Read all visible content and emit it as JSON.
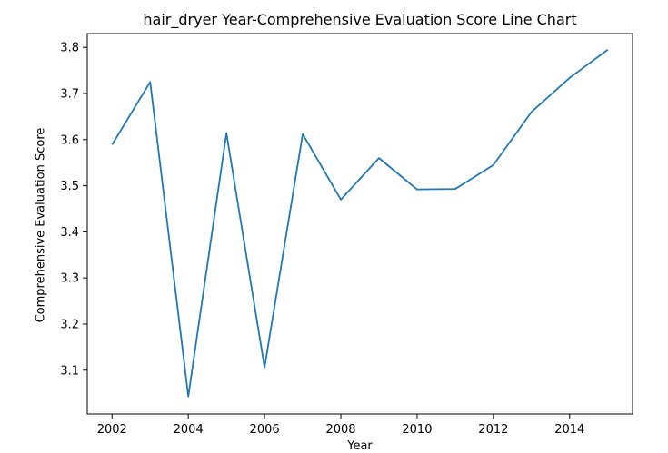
{
  "chart_data": {
    "type": "line",
    "title": "hair_dryer Year-Comprehensive Evaluation Score Line Chart",
    "xlabel": "Year",
    "ylabel": "Comprehensive Evaluation Score",
    "x": [
      2002,
      2003,
      2004,
      2005,
      2006,
      2007,
      2008,
      2009,
      2010,
      2011,
      2012,
      2013,
      2014,
      2015
    ],
    "series": [
      {
        "values": [
          3.589,
          3.725,
          3.043,
          3.614,
          3.106,
          3.612,
          3.47,
          3.56,
          3.492,
          3.493,
          3.545,
          3.66,
          3.734,
          3.795
        ],
        "color": "#1f77b4"
      }
    ],
    "x_ticks": [
      "2002",
      "2004",
      "2006",
      "2008",
      "2010",
      "2012",
      "2014"
    ],
    "y_ticks": [
      "3.1",
      "3.2",
      "3.3",
      "3.4",
      "3.5",
      "3.6",
      "3.7",
      "3.8"
    ],
    "xlim": [
      2001.35,
      2015.65
    ],
    "ylim": [
      3.005,
      3.83
    ],
    "grid": false
  }
}
